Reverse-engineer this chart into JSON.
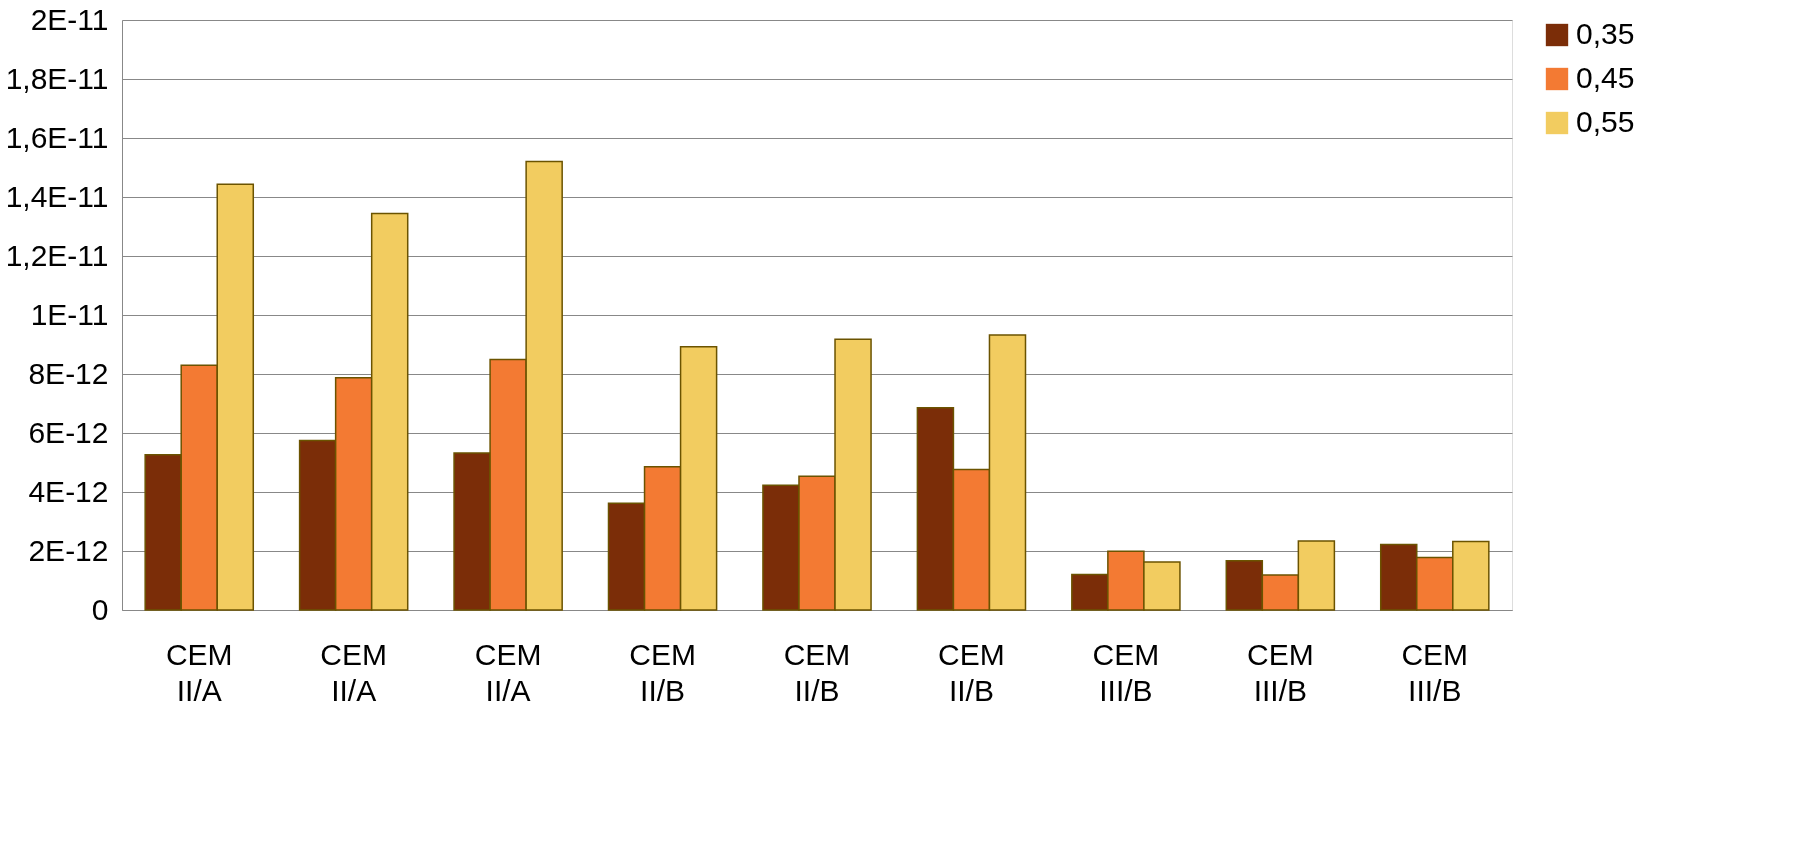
{
  "chart_data": {
    "type": "bar",
    "categories": [
      "CEM II/A",
      "CEM II/A",
      "CEM II/A",
      "CEM II/B",
      "CEM II/B",
      "CEM II/B",
      "CEM III/B",
      "CEM III/B",
      "CEM III/B"
    ],
    "series": [
      {
        "name": "0,35",
        "color": "#7b2d08",
        "values": [
          5.26e-12,
          5.75e-12,
          5.32e-12,
          3.62e-12,
          4.23e-12,
          6.86e-12,
          1.2e-12,
          1.67e-12,
          2.22e-12
        ]
      },
      {
        "name": "0,45",
        "color": "#f37a33",
        "values": [
          8.3e-12,
          7.87e-12,
          8.49e-12,
          4.86e-12,
          4.53e-12,
          4.76e-12,
          1.99e-12,
          1.19e-12,
          1.78e-12
        ]
      },
      {
        "name": "0,55",
        "color": "#f2cc60",
        "values": [
          1.443e-11,
          1.344e-11,
          1.52e-11,
          8.92e-12,
          9.18e-12,
          9.32e-12,
          1.63e-12,
          2.34e-12,
          2.32e-12
        ]
      }
    ],
    "ylim": [
      0,
      2e-11
    ],
    "yticks": [
      0,
      {
        "value": 2e-12,
        "label": "2E-12"
      },
      {
        "value": 4e-12,
        "label": "4E-12"
      },
      {
        "value": 6e-12,
        "label": "6E-12"
      },
      {
        "value": 8e-12,
        "label": "8E-12"
      },
      {
        "value": 1e-11,
        "label": "1E-11"
      },
      {
        "value": 1.2e-11,
        "label": "1,2E-11"
      },
      {
        "value": 1.4e-11,
        "label": "1,4E-11"
      },
      {
        "value": 1.6e-11,
        "label": "1,6E-11"
      },
      {
        "value": 1.8e-11,
        "label": "1,8E-11"
      },
      {
        "value": 2e-11,
        "label": "2E-11"
      }
    ],
    "grid": "y",
    "legend": "right"
  }
}
